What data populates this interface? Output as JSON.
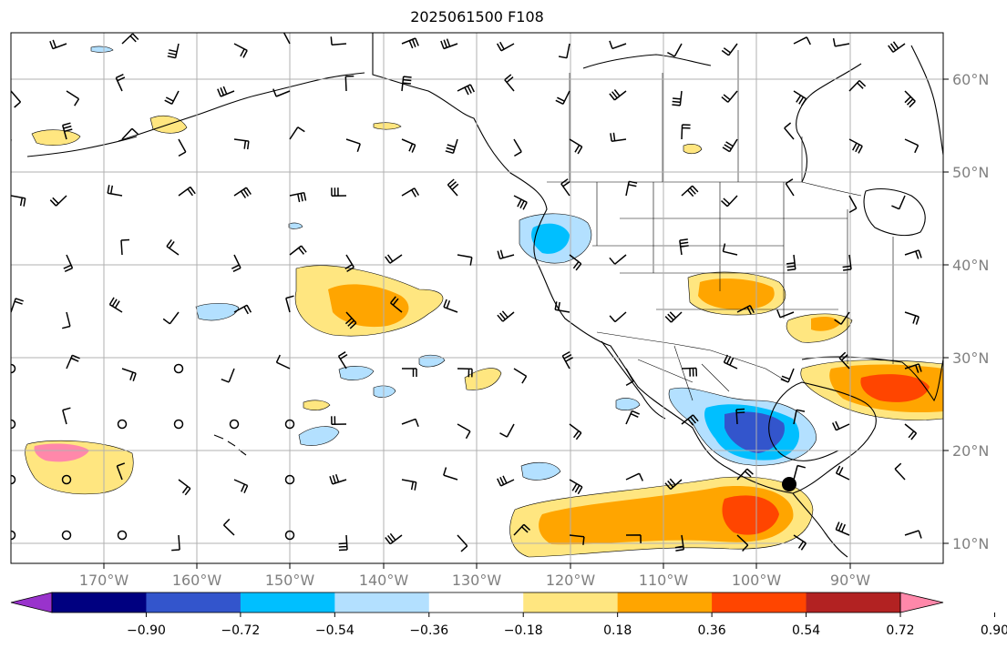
{
  "title": "2025061500 F108",
  "map": {
    "lon_labels": [
      "170°W",
      "160°W",
      "150°W",
      "140°W",
      "130°W",
      "120°W",
      "110°W",
      "100°W",
      "90°W"
    ],
    "lat_labels": [
      "60°N",
      "50°N",
      "40°N",
      "30°N",
      "20°N",
      "10°N"
    ],
    "gridlines": true,
    "overlays": [
      "coastlines",
      "borders",
      "wind-barbs",
      "shaded-anomaly"
    ],
    "marker": "black-dot"
  },
  "colorbar": {
    "ticks": [
      "−0.90",
      "−0.72",
      "−0.54",
      "−0.36",
      "−0.18",
      "0.18",
      "0.36",
      "0.54",
      "0.72",
      "0.90"
    ],
    "colors": [
      "#9933cc",
      "#000080",
      "#3355cc",
      "#00bfff",
      "#b3e0ff",
      "#ffffff",
      "#ffe680",
      "#ffa500",
      "#ff4500",
      "#b22222",
      "#ff88aa"
    ],
    "extend": "both"
  }
}
